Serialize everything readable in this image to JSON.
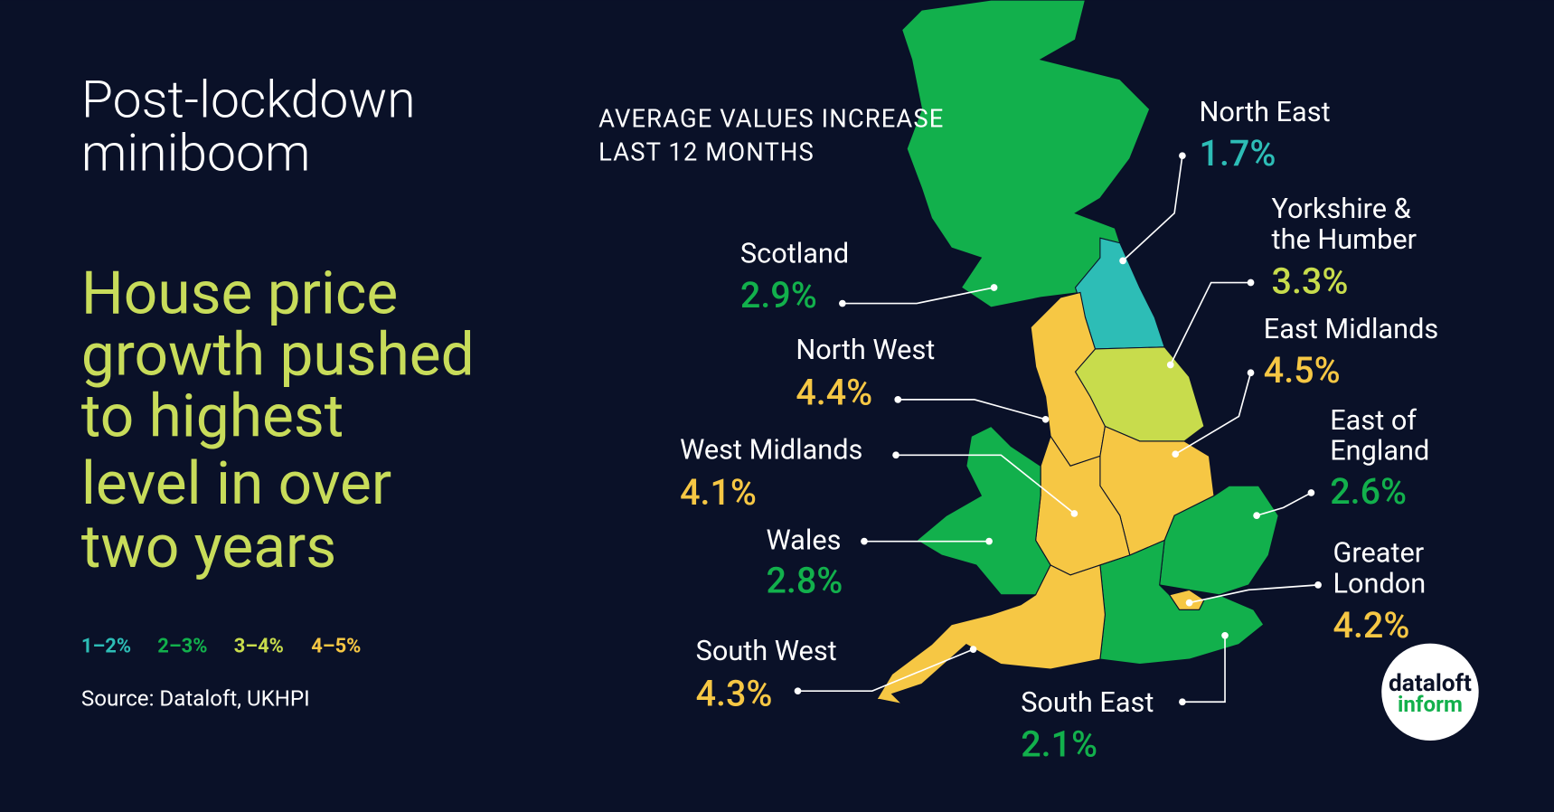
{
  "header": {
    "title": [
      "Post-lockdown",
      "miniboom"
    ],
    "headline": [
      "House price",
      "growth pushed",
      "to highest",
      "level in over",
      "two years"
    ]
  },
  "legend": [
    {
      "label": "1–2%",
      "color": "#2dbdb6"
    },
    {
      "label": "2–3%",
      "color": "#12b04c"
    },
    {
      "label": "3–4%",
      "color": "#c8dc4c"
    },
    {
      "label": "4–5%",
      "color": "#f6c744"
    }
  ],
  "source": "Source: Dataloft, UKHPI",
  "map": {
    "heading": [
      "AVERAGE VALUES INCREASE",
      "LAST 12 MONTHS"
    ],
    "regions": [
      {
        "name": [
          "Scotland"
        ],
        "value": "2.9%",
        "color": "#12b04c"
      },
      {
        "name": [
          "North East"
        ],
        "value": "1.7%",
        "color": "#2dbdb6"
      },
      {
        "name": [
          "Yorkshire &",
          "the Humber"
        ],
        "value": "3.3%",
        "color": "#c8dc4c"
      },
      {
        "name": [
          "North West"
        ],
        "value": "4.4%",
        "color": "#f6c744"
      },
      {
        "name": [
          "East Midlands"
        ],
        "value": "4.5%",
        "color": "#f6c744"
      },
      {
        "name": [
          "West Midlands"
        ],
        "value": "4.1%",
        "color": "#f6c744"
      },
      {
        "name": [
          "Wales"
        ],
        "value": "2.8%",
        "color": "#12b04c"
      },
      {
        "name": [
          "East of",
          "England"
        ],
        "value": "2.6%",
        "color": "#12b04c"
      },
      {
        "name": [
          "Greater",
          "London"
        ],
        "value": "4.2%",
        "color": "#f6c744"
      },
      {
        "name": [
          "South East"
        ],
        "value": "2.1%",
        "color": "#12b04c"
      },
      {
        "name": [
          "South West"
        ],
        "value": "4.3%",
        "color": "#f6c744"
      }
    ]
  },
  "logo": [
    "dataloft",
    "inform"
  ]
}
